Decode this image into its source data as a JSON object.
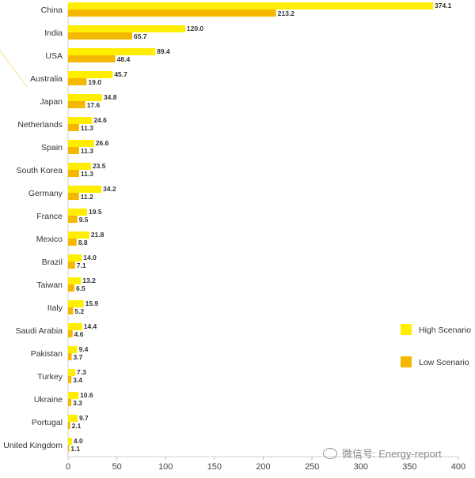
{
  "chart_data": {
    "type": "bar",
    "orientation": "horizontal",
    "categories": [
      "China",
      "India",
      "USA",
      "Australia",
      "Japan",
      "Netherlands",
      "Spain",
      "South Korea",
      "Germany",
      "France",
      "Mexico",
      "Brazil",
      "Taiwan",
      "Italy",
      "Saudi Arabia",
      "Pakistan",
      "Turkey",
      "Ukraine",
      "Portugal",
      "United Kingdom"
    ],
    "series": [
      {
        "name": "High Scenario",
        "color": "#ffee00",
        "values": [
          374.1,
          120.0,
          89.4,
          45.7,
          34.8,
          24.6,
          26.6,
          23.5,
          34.2,
          19.5,
          21.8,
          14.0,
          13.2,
          15.9,
          14.4,
          9.4,
          7.3,
          10.6,
          9.7,
          4.0
        ],
        "labels": [
          "374.1",
          "120.0",
          "89.4",
          "45.7",
          "34.8",
          "24.6",
          "26.6",
          "23.5",
          "34.2",
          "19.5",
          "21.8",
          "14.0",
          "13.2",
          "15.9",
          "14.4",
          "9.4",
          "7.3",
          "10.6",
          "9.7",
          "4.0"
        ]
      },
      {
        "name": "Low Scenario",
        "color": "#f5b800",
        "values": [
          213.2,
          65.7,
          48.4,
          19.0,
          17.6,
          11.3,
          11.3,
          11.3,
          11.2,
          9.5,
          8.8,
          7.1,
          6.5,
          5.2,
          4.6,
          3.7,
          3.4,
          3.3,
          2.1,
          1.1
        ],
        "labels": [
          "213.2",
          "65.7",
          "48.4",
          "19.0",
          "17.6",
          "11.3",
          "11.3",
          "11.3",
          "11.2",
          "9.5",
          "8.8",
          "7.1",
          "6.5",
          "5.2",
          "4.6",
          "3.7",
          "3.4",
          "3.3",
          "2.1",
          "1.1"
        ]
      }
    ],
    "xlim": [
      0,
      400
    ],
    "xticks": [
      0,
      50,
      100,
      150,
      200,
      250,
      300,
      350,
      400
    ],
    "xticklabels": [
      "0",
      "50",
      "100",
      "150",
      "200",
      "250",
      "300",
      "350",
      "400"
    ],
    "grid": false,
    "legend_position": "right"
  },
  "watermark": {
    "text": "微信号: Energy-report"
  }
}
